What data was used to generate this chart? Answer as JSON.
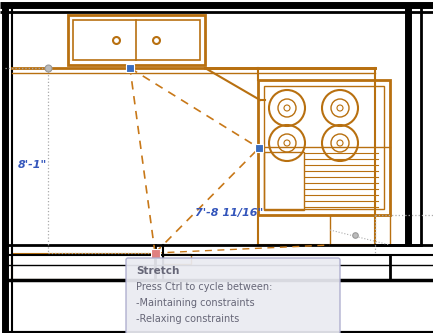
{
  "bg_color": "#ffffff",
  "wall_color": "#000000",
  "orange_color": "#b87010",
  "blue_handle_color": "#3a6dbf",
  "pink_handle_color": "#e08080",
  "gray_dot_color": "#999999",
  "dashed_orange_color": "#c87818",
  "dotted_gray_color": "#aaaaaa",
  "dim_text_color": "#3355bb",
  "tooltip_bg": "#eaebf2",
  "tooltip_border": "#aaaacc",
  "tooltip_text_color": "#666677",
  "dim1_text": "8'-1\"",
  "dim2_text": "7'-8 11/16\"",
  "tooltip_title": "Stretch",
  "tooltip_line1": "Press Ctrl to cycle between:",
  "tooltip_line2": "-Maintaining constraints",
  "tooltip_line3": "-Relaxing constraints",
  "figsize": [
    4.33,
    3.33
  ],
  "dpi": 100
}
